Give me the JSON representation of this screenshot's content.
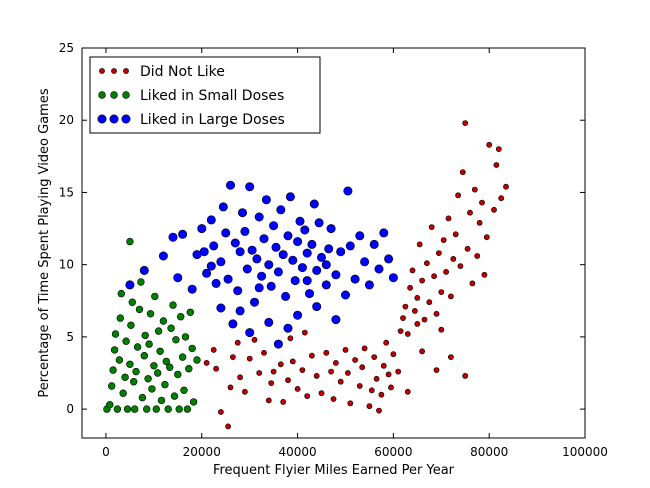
{
  "chart_data": {
    "type": "scatter",
    "xlabel": "Frequent Flyier Miles Earned Per Year",
    "ylabel": "Percentage of Time Spent Playing Video Games",
    "xlim": [
      -5000,
      100000
    ],
    "ylim": [
      -2,
      25
    ],
    "xticks": [
      0,
      20000,
      40000,
      60000,
      80000,
      100000
    ],
    "xtick_labels": [
      "0",
      "20000",
      "40000",
      "60000",
      "80000",
      "100000"
    ],
    "yticks": [
      0,
      5,
      10,
      15,
      20,
      25
    ],
    "ytick_labels": [
      "0",
      "5",
      "10",
      "15",
      "20",
      "25"
    ],
    "grid": false,
    "legend_position": "top-left",
    "series": [
      {
        "name": "Did Not Like",
        "color": "#c00000",
        "marker_size": "small",
        "points": [
          [
            21000,
            3.2
          ],
          [
            22500,
            4.1
          ],
          [
            23000,
            2.8
          ],
          [
            24000,
            -0.2
          ],
          [
            25500,
            -1.2
          ],
          [
            26000,
            1.5
          ],
          [
            26500,
            3.6
          ],
          [
            27500,
            4.6
          ],
          [
            28000,
            2.2
          ],
          [
            29000,
            1.2
          ],
          [
            30000,
            3.5
          ],
          [
            31000,
            4.8
          ],
          [
            32000,
            2.5
          ],
          [
            33000,
            3.9
          ],
          [
            34000,
            0.6
          ],
          [
            34500,
            1.8
          ],
          [
            35000,
            2.6
          ],
          [
            36000,
            4.4
          ],
          [
            36500,
            3.1
          ],
          [
            37000,
            0.5
          ],
          [
            38000,
            2.0
          ],
          [
            38500,
            4.9
          ],
          [
            39000,
            3.3
          ],
          [
            40000,
            1.4
          ],
          [
            41000,
            2.7
          ],
          [
            41500,
            5.3
          ],
          [
            42000,
            0.9
          ],
          [
            43000,
            3.7
          ],
          [
            44000,
            2.3
          ],
          [
            45000,
            1.1
          ],
          [
            46000,
            3.9
          ],
          [
            47000,
            2.6
          ],
          [
            47500,
            0.7
          ],
          [
            48000,
            3.2
          ],
          [
            49000,
            1.9
          ],
          [
            50000,
            4.1
          ],
          [
            50500,
            2.5
          ],
          [
            51000,
            0.4
          ],
          [
            52000,
            3.4
          ],
          [
            53000,
            1.6
          ],
          [
            53500,
            2.9
          ],
          [
            54000,
            4.2
          ],
          [
            55000,
            0.2
          ],
          [
            55500,
            1.3
          ],
          [
            56000,
            3.6
          ],
          [
            56500,
            2.1
          ],
          [
            57000,
            -0.1
          ],
          [
            57500,
            1.0
          ],
          [
            58000,
            3.0
          ],
          [
            58500,
            4.6
          ],
          [
            59000,
            2.4
          ],
          [
            59500,
            1.5
          ],
          [
            60000,
            3.8
          ],
          [
            61000,
            2.6
          ],
          [
            61500,
            5.4
          ],
          [
            62000,
            6.3
          ],
          [
            62500,
            7.1
          ],
          [
            63000,
            5.2
          ],
          [
            63500,
            8.4
          ],
          [
            64000,
            9.6
          ],
          [
            64500,
            6.8
          ],
          [
            65000,
            7.7
          ],
          [
            65500,
            11.4
          ],
          [
            66000,
            8.9
          ],
          [
            66500,
            6.2
          ],
          [
            67000,
            10.1
          ],
          [
            67500,
            7.4
          ],
          [
            68000,
            12.6
          ],
          [
            68500,
            9.2
          ],
          [
            69000,
            6.6
          ],
          [
            69500,
            10.8
          ],
          [
            70000,
            8.1
          ],
          [
            70500,
            11.7
          ],
          [
            71000,
            9.5
          ],
          [
            71500,
            13.2
          ],
          [
            72000,
            7.8
          ],
          [
            72500,
            10.4
          ],
          [
            73000,
            12.1
          ],
          [
            73500,
            14.8
          ],
          [
            74000,
            9.9
          ],
          [
            74500,
            16.4
          ],
          [
            75000,
            19.8
          ],
          [
            75500,
            11.1
          ],
          [
            76000,
            13.6
          ],
          [
            76500,
            8.7
          ],
          [
            77000,
            15.2
          ],
          [
            77500,
            10.6
          ],
          [
            78000,
            12.9
          ],
          [
            78500,
            14.3
          ],
          [
            79000,
            9.3
          ],
          [
            79500,
            11.9
          ],
          [
            80000,
            18.3
          ],
          [
            81000,
            13.8
          ],
          [
            81500,
            16.9
          ],
          [
            82000,
            18.0
          ],
          [
            82500,
            14.6
          ],
          [
            83500,
            15.4
          ],
          [
            75000,
            2.3
          ],
          [
            63000,
            1.2
          ],
          [
            66000,
            4.0
          ],
          [
            70000,
            5.5
          ],
          [
            72000,
            3.6
          ],
          [
            69000,
            2.7
          ],
          [
            65000,
            5.9
          ]
        ]
      },
      {
        "name": "Liked in Small Doses",
        "color": "#008000",
        "marker_size": "medium",
        "points": [
          [
            200,
            0
          ],
          [
            800,
            0.3
          ],
          [
            1200,
            1.6
          ],
          [
            1500,
            2.7
          ],
          [
            1800,
            4.1
          ],
          [
            2000,
            5.2
          ],
          [
            2400,
            0
          ],
          [
            2800,
            3.4
          ],
          [
            3000,
            6.3
          ],
          [
            3200,
            8.0
          ],
          [
            3600,
            1.1
          ],
          [
            4000,
            2.2
          ],
          [
            4200,
            4.7
          ],
          [
            4500,
            0
          ],
          [
            5000,
            3.1
          ],
          [
            5200,
            5.8
          ],
          [
            5500,
            7.4
          ],
          [
            5800,
            1.9
          ],
          [
            6000,
            0
          ],
          [
            6300,
            2.6
          ],
          [
            6600,
            4.3
          ],
          [
            7000,
            6.9
          ],
          [
            7300,
            8.8
          ],
          [
            7600,
            0.8
          ],
          [
            8000,
            3.7
          ],
          [
            8200,
            5.1
          ],
          [
            8500,
            0
          ],
          [
            8800,
            2.1
          ],
          [
            9000,
            4.5
          ],
          [
            9300,
            6.6
          ],
          [
            9600,
            1.4
          ],
          [
            10000,
            3.0
          ],
          [
            10200,
            7.8
          ],
          [
            10500,
            0
          ],
          [
            10800,
            2.5
          ],
          [
            11000,
            5.4
          ],
          [
            11300,
            4.0
          ],
          [
            11600,
            0.6
          ],
          [
            12000,
            6.1
          ],
          [
            12300,
            1.7
          ],
          [
            12600,
            3.3
          ],
          [
            13000,
            0
          ],
          [
            13300,
            2.9
          ],
          [
            13600,
            5.6
          ],
          [
            14000,
            7.2
          ],
          [
            14300,
            0.9
          ],
          [
            14600,
            4.8
          ],
          [
            15000,
            2.4
          ],
          [
            15300,
            0
          ],
          [
            15600,
            6.4
          ],
          [
            16000,
            3.6
          ],
          [
            16300,
            1.3
          ],
          [
            16600,
            5.0
          ],
          [
            17000,
            0
          ],
          [
            17300,
            2.8
          ],
          [
            17600,
            6.7
          ],
          [
            18000,
            4.2
          ],
          [
            18300,
            0.5
          ],
          [
            19000,
            3.4
          ],
          [
            5000,
            11.6
          ]
        ]
      },
      {
        "name": "Liked in Large Doses",
        "color": "#0000ff",
        "marker_size": "large",
        "points": [
          [
            5000,
            8.6
          ],
          [
            8000,
            9.6
          ],
          [
            12000,
            10.6
          ],
          [
            14000,
            11.9
          ],
          [
            15000,
            9.1
          ],
          [
            16000,
            12.1
          ],
          [
            18000,
            8.3
          ],
          [
            19000,
            10.7
          ],
          [
            20000,
            12.5
          ],
          [
            21000,
            9.4
          ],
          [
            22000,
            13.1
          ],
          [
            22500,
            11.3
          ],
          [
            23000,
            8.7
          ],
          [
            24000,
            10.2
          ],
          [
            24500,
            14.0
          ],
          [
            25000,
            12.2
          ],
          [
            25500,
            9.0
          ],
          [
            26000,
            15.5
          ],
          [
            27000,
            11.5
          ],
          [
            27500,
            8.2
          ],
          [
            28000,
            10.9
          ],
          [
            28500,
            13.6
          ],
          [
            29000,
            12.3
          ],
          [
            29500,
            9.7
          ],
          [
            30000,
            15.4
          ],
          [
            30500,
            11.0
          ],
          [
            31000,
            7.4
          ],
          [
            31500,
            10.4
          ],
          [
            32000,
            13.3
          ],
          [
            32500,
            9.2
          ],
          [
            33000,
            11.8
          ],
          [
            33500,
            14.5
          ],
          [
            34000,
            10.0
          ],
          [
            34500,
            8.5
          ],
          [
            35000,
            12.7
          ],
          [
            35500,
            11.2
          ],
          [
            36000,
            9.5
          ],
          [
            36500,
            13.8
          ],
          [
            37000,
            10.7
          ],
          [
            37500,
            7.8
          ],
          [
            38000,
            12.0
          ],
          [
            38500,
            14.7
          ],
          [
            39000,
            10.3
          ],
          [
            39500,
            8.9
          ],
          [
            40000,
            11.6
          ],
          [
            40500,
            13.0
          ],
          [
            41000,
            9.8
          ],
          [
            41500,
            12.4
          ],
          [
            42000,
            10.8
          ],
          [
            42500,
            8.0
          ],
          [
            43000,
            11.4
          ],
          [
            43500,
            14.2
          ],
          [
            44000,
            9.6
          ],
          [
            44500,
            12.9
          ],
          [
            45000,
            10.5
          ],
          [
            46000,
            8.6
          ],
          [
            46500,
            11.1
          ],
          [
            47000,
            12.5
          ],
          [
            48000,
            9.3
          ],
          [
            49000,
            10.9
          ],
          [
            50000,
            7.9
          ],
          [
            50500,
            15.1
          ],
          [
            51000,
            11.3
          ],
          [
            52000,
            9.0
          ],
          [
            53000,
            12.0
          ],
          [
            54000,
            10.2
          ],
          [
            55000,
            8.6
          ],
          [
            56000,
            11.4
          ],
          [
            57000,
            9.7
          ],
          [
            58000,
            12.2
          ],
          [
            59000,
            10.4
          ],
          [
            60000,
            9.1
          ],
          [
            36000,
            4.5
          ],
          [
            30000,
            5.3
          ],
          [
            26500,
            5.9
          ],
          [
            40000,
            6.5
          ],
          [
            44000,
            7.1
          ],
          [
            48000,
            6.2
          ],
          [
            28000,
            6.8
          ],
          [
            34000,
            6.0
          ],
          [
            38000,
            5.6
          ],
          [
            24000,
            7.0
          ],
          [
            32000,
            8.4
          ],
          [
            42000,
            8.9
          ],
          [
            46000,
            10.0
          ],
          [
            22000,
            9.9
          ],
          [
            20500,
            10.9
          ]
        ]
      }
    ]
  }
}
